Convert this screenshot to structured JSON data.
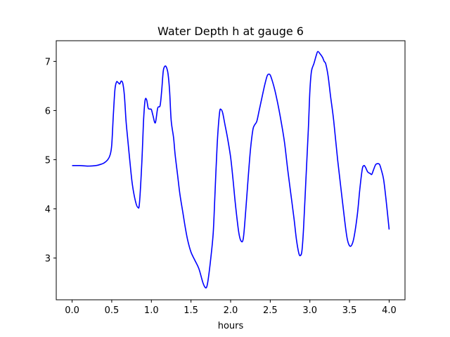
{
  "chart_data": {
    "type": "line",
    "title": "Water Depth h at gauge 6",
    "xlabel": "hours",
    "ylabel": "",
    "xlim": [
      -0.2,
      4.2
    ],
    "ylim": [
      2.15,
      7.42
    ],
    "xticks": [
      "0.0",
      "0.5",
      "1.0",
      "1.5",
      "2.0",
      "2.5",
      "3.0",
      "3.5",
      "4.0"
    ],
    "yticks": [
      "3",
      "4",
      "5",
      "6",
      "7"
    ],
    "grid": false,
    "legend": "none",
    "series": [
      {
        "color": "#0000ff",
        "x": [
          0.0,
          0.1,
          0.2,
          0.3,
          0.35,
          0.4,
          0.45,
          0.48,
          0.5,
          0.52,
          0.54,
          0.56,
          0.58,
          0.6,
          0.62,
          0.64,
          0.66,
          0.68,
          0.7,
          0.73,
          0.76,
          0.8,
          0.83,
          0.85,
          0.88,
          0.9,
          0.92,
          0.94,
          0.96,
          0.98,
          1.0,
          1.02,
          1.05,
          1.08,
          1.11,
          1.13,
          1.15,
          1.17,
          1.19,
          1.21,
          1.23,
          1.25,
          1.28,
          1.3,
          1.33,
          1.36,
          1.4,
          1.43,
          1.46,
          1.5,
          1.55,
          1.6,
          1.65,
          1.68,
          1.7,
          1.72,
          1.75,
          1.78,
          1.8,
          1.83,
          1.86,
          1.88,
          1.9,
          1.93,
          1.96,
          2.0,
          2.03,
          2.06,
          2.1,
          2.13,
          2.16,
          2.19,
          2.22,
          2.25,
          2.28,
          2.3,
          2.33,
          2.36,
          2.4,
          2.43,
          2.46,
          2.48,
          2.5,
          2.53,
          2.56,
          2.6,
          2.64,
          2.68,
          2.72,
          2.76,
          2.8,
          2.83,
          2.86,
          2.88,
          2.9,
          2.92,
          2.95,
          2.98,
          3.0,
          3.02,
          3.05,
          3.08,
          3.1,
          3.13,
          3.16,
          3.18,
          3.2,
          3.23,
          3.26,
          3.3,
          3.35,
          3.4,
          3.44,
          3.47,
          3.5,
          3.53,
          3.56,
          3.6,
          3.63,
          3.66,
          3.68,
          3.7,
          3.73,
          3.76,
          3.78,
          3.8,
          3.83,
          3.86,
          3.88,
          3.9,
          3.93,
          3.96,
          4.0
        ],
        "y": [
          4.88,
          4.88,
          4.87,
          4.88,
          4.9,
          4.93,
          5.0,
          5.1,
          5.3,
          5.9,
          6.42,
          6.58,
          6.57,
          6.54,
          6.6,
          6.55,
          6.3,
          5.8,
          5.45,
          4.95,
          4.5,
          4.15,
          4.03,
          4.12,
          4.95,
          5.75,
          6.2,
          6.22,
          6.05,
          6.03,
          6.02,
          5.9,
          5.75,
          6.05,
          6.1,
          6.4,
          6.8,
          6.9,
          6.88,
          6.75,
          6.4,
          5.8,
          5.45,
          5.1,
          4.7,
          4.3,
          3.9,
          3.6,
          3.35,
          3.12,
          2.95,
          2.78,
          2.5,
          2.4,
          2.42,
          2.6,
          3.0,
          3.5,
          4.2,
          5.3,
          5.95,
          6.02,
          5.95,
          5.7,
          5.45,
          5.05,
          4.6,
          4.1,
          3.55,
          3.35,
          3.4,
          3.95,
          4.6,
          5.2,
          5.6,
          5.7,
          5.78,
          6.0,
          6.3,
          6.52,
          6.7,
          6.74,
          6.72,
          6.58,
          6.4,
          6.1,
          5.75,
          5.35,
          4.8,
          4.3,
          3.8,
          3.38,
          3.1,
          3.05,
          3.15,
          3.6,
          4.6,
          5.6,
          6.4,
          6.8,
          6.95,
          7.12,
          7.2,
          7.15,
          7.08,
          7.0,
          6.95,
          6.7,
          6.3,
          5.8,
          5.0,
          4.3,
          3.75,
          3.4,
          3.25,
          3.27,
          3.45,
          3.9,
          4.4,
          4.8,
          4.88,
          4.85,
          4.75,
          4.72,
          4.7,
          4.78,
          4.9,
          4.92,
          4.9,
          4.8,
          4.6,
          4.2,
          3.58
        ]
      }
    ]
  }
}
